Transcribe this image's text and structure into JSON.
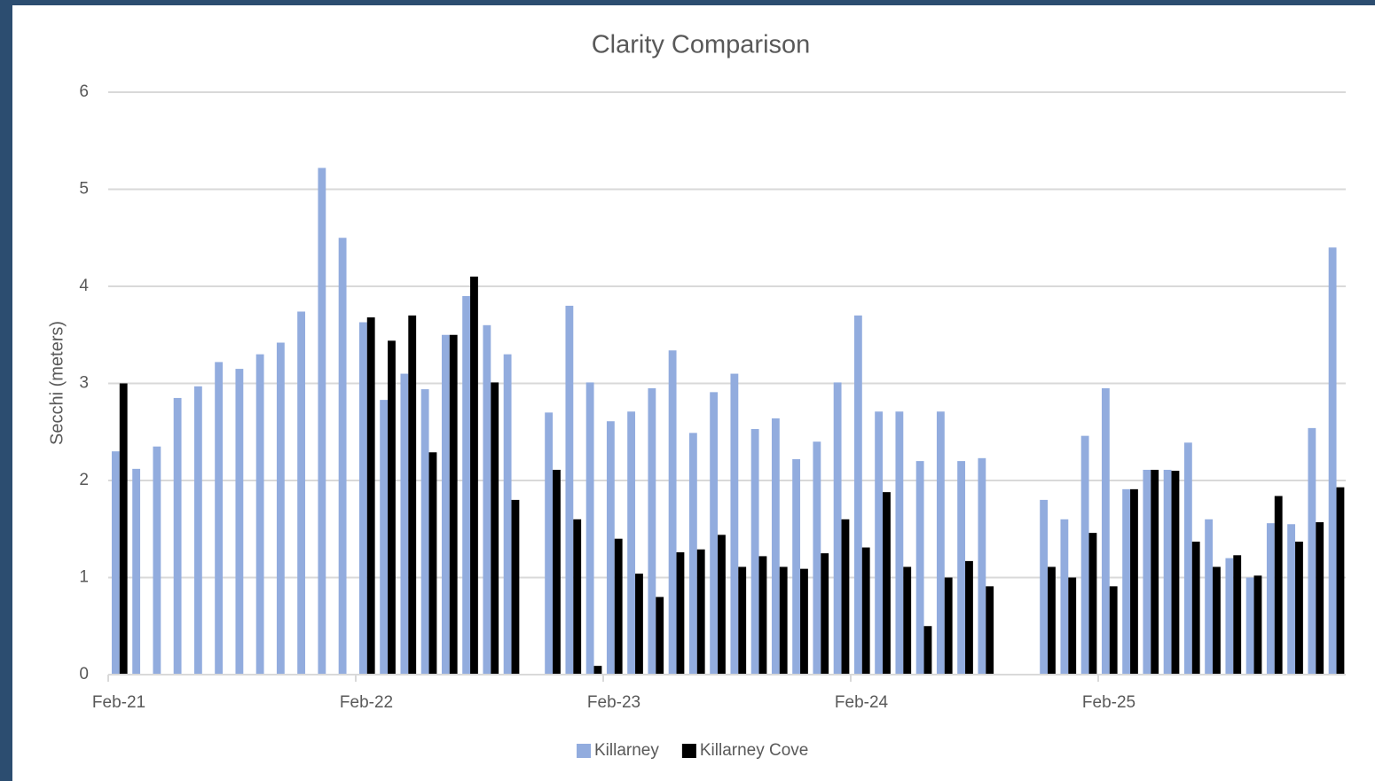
{
  "chart_data": {
    "type": "bar",
    "title": "Clarity Comparison",
    "y_label": "Secchi (meters)",
    "categories": [
      "Feb-21",
      null,
      null,
      null,
      null,
      null,
      null,
      null,
      null,
      null,
      null,
      null,
      "Feb-22",
      null,
      null,
      null,
      null,
      null,
      null,
      null,
      null,
      null,
      null,
      null,
      "Feb-23",
      null,
      null,
      null,
      null,
      null,
      null,
      null,
      null,
      null,
      null,
      null,
      "Feb-24",
      null,
      null,
      null,
      null,
      null,
      null,
      null,
      null,
      null,
      null,
      null,
      "Feb-25",
      null,
      null,
      null,
      null,
      null,
      null,
      null,
      null,
      null,
      null,
      null
    ],
    "series": [
      {
        "name": "Killarney",
        "color": "#92acde",
        "values": [
          2.3,
          2.12,
          2.35,
          2.85,
          2.97,
          3.22,
          3.15,
          3.3,
          3.42,
          3.74,
          5.22,
          4.5,
          3.63,
          2.83,
          3.1,
          2.94,
          3.5,
          3.9,
          3.6,
          3.3,
          null,
          2.7,
          3.8,
          3.01,
          2.61,
          2.71,
          2.95,
          3.34,
          2.49,
          2.91,
          3.1,
          2.53,
          2.64,
          2.22,
          2.4,
          3.01,
          3.7,
          2.71,
          2.71,
          2.2,
          2.71,
          2.2,
          2.23,
          null,
          null,
          1.8,
          1.6,
          2.46,
          2.95,
          1.91,
          2.11,
          2.11,
          2.39,
          1.6,
          1.2,
          1.0,
          1.56,
          1.55,
          2.54,
          4.4
        ]
      },
      {
        "name": "Killarney Cove",
        "color": "#000000",
        "values": [
          3.0,
          null,
          null,
          null,
          null,
          null,
          null,
          null,
          null,
          null,
          null,
          null,
          3.68,
          3.44,
          3.7,
          2.29,
          3.5,
          4.1,
          3.01,
          1.8,
          null,
          2.11,
          1.6,
          0.09,
          1.4,
          1.04,
          0.8,
          1.26,
          1.29,
          1.44,
          1.11,
          1.22,
          1.11,
          1.09,
          1.25,
          1.6,
          1.31,
          1.88,
          1.11,
          0.5,
          1.0,
          1.17,
          0.91,
          null,
          null,
          1.11,
          1.0,
          1.46,
          0.91,
          1.91,
          2.11,
          2.1,
          1.37,
          1.11,
          1.23,
          1.02,
          1.84,
          1.37,
          1.57,
          1.93
        ]
      }
    ],
    "ylim": [
      0,
      6
    ],
    "yticks": [
      0,
      1,
      2,
      3,
      4,
      5,
      6
    ],
    "grid": true,
    "legend": "bottom"
  }
}
